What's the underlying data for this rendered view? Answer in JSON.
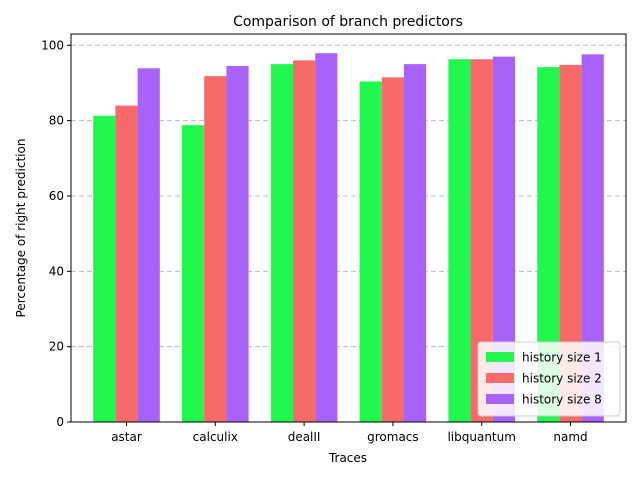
{
  "chart_data": {
    "type": "bar",
    "title": "Comparison of branch predictors",
    "xlabel": "Traces",
    "ylabel": "Percentage of right prediction",
    "categories": [
      "astar",
      "calculix",
      "dealII",
      "gromacs",
      "libquantum",
      "namd"
    ],
    "series": [
      {
        "name": "history size 1",
        "color": "#22f74d",
        "values": [
          81.3,
          78.8,
          95.0,
          90.4,
          96.3,
          94.2
        ]
      },
      {
        "name": "history size 2",
        "color": "#f76a6a",
        "values": [
          84.0,
          91.8,
          96.0,
          91.5,
          96.3,
          94.8
        ]
      },
      {
        "name": "history size 8",
        "color": "#a862f7",
        "values": [
          93.9,
          94.5,
          97.9,
          95.0,
          97.0,
          97.6
        ]
      }
    ],
    "ylim": [
      0,
      103
    ],
    "yticks": [
      0,
      20,
      40,
      60,
      80,
      100
    ],
    "grid": "y-dashed",
    "legend_position": "lower-right"
  }
}
